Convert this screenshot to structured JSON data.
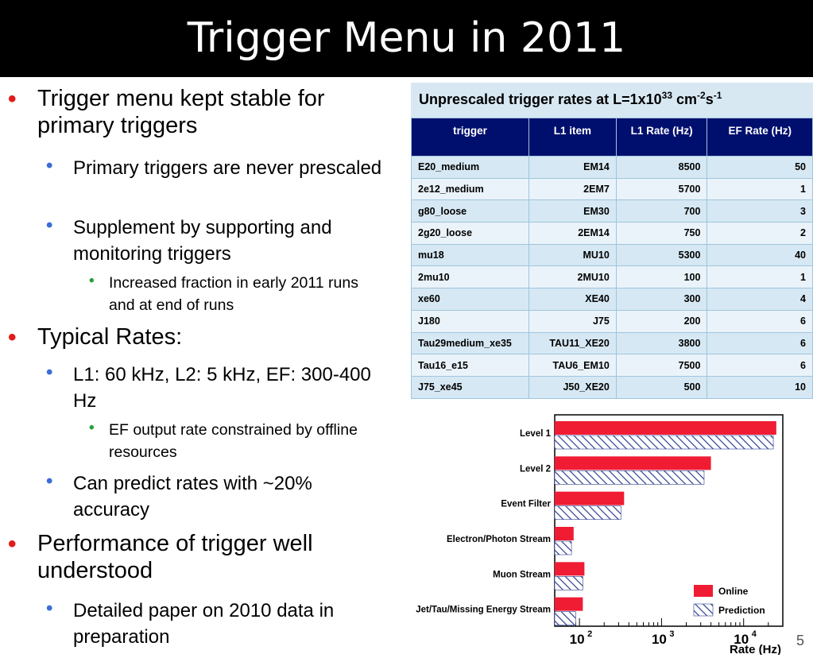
{
  "slide": {
    "title": "Trigger Menu in 2011",
    "page_number": "5",
    "colors": {
      "title_bg": "#000000",
      "l1_bullet": "#e21b1b",
      "l2_bullet": "#3a6ed6",
      "l3_bullet": "#28a03a"
    }
  },
  "bullets": [
    {
      "level": 1,
      "text": "Trigger menu kept stable for primary triggers"
    },
    {
      "level": 2,
      "text": "Primary triggers are never prescaled"
    },
    {
      "level": 2,
      "text": "Supplement by supporting and monitoring triggers"
    },
    {
      "level": 3,
      "text": "Increased fraction in early 2011 runs and at end of runs"
    },
    {
      "level": 1,
      "text": "Typical Rates:"
    },
    {
      "level": 2,
      "text": "L1: 60 kHz, L2: 5 kHz, EF: 300-400 Hz"
    },
    {
      "level": 3,
      "text": "EF output rate constrained by offline resources"
    },
    {
      "level": 2,
      "text": "Can predict rates with ~20% accuracy"
    },
    {
      "level": 1,
      "text": "Performance of trigger well understood"
    },
    {
      "level": 2,
      "text": "Detailed paper on 2010 data in preparation"
    }
  ],
  "rate_table": {
    "caption": {
      "prefix": "Unprescaled trigger rates at L=1x10",
      "lumi_exp": "33",
      "unit_cm": " cm",
      "cm_exp": "-2",
      "unit_s": "s",
      "s_exp": "-1"
    },
    "headers": [
      "trigger",
      "L1 item",
      "L1 Rate (Hz)",
      "EF Rate (Hz)"
    ],
    "rows": [
      [
        "E20_medium",
        "EM14",
        "8500",
        "50"
      ],
      [
        "2e12_medium",
        "2EM7",
        "5700",
        "1"
      ],
      [
        "g80_loose",
        "EM30",
        "700",
        "3"
      ],
      [
        "2g20_loose",
        "2EM14",
        "750",
        "2"
      ],
      [
        "mu18",
        "MU10",
        "5300",
        "40"
      ],
      [
        "2mu10",
        "2MU10",
        "100",
        "1"
      ],
      [
        "xe60",
        "XE40",
        "300",
        "4"
      ],
      [
        "J180",
        "J75",
        "200",
        "6"
      ],
      [
        "Tau29medium_xe35",
        "TAU11_XE20",
        "3800",
        "6"
      ],
      [
        "Tau16_e15",
        "TAU6_EM10",
        "7500",
        "6"
      ],
      [
        "J75_xe45",
        "J50_XE20",
        "500",
        "10"
      ]
    ]
  },
  "chart_data": {
    "type": "bar",
    "orientation": "horizontal",
    "xscale": "log",
    "xlim": [
      50,
      30000
    ],
    "xlabel": "Rate (Hz)",
    "xticks": [
      100,
      1000,
      10000
    ],
    "xtick_labels": [
      [
        "10",
        "2"
      ],
      [
        "10",
        "3"
      ],
      [
        "10",
        "4"
      ]
    ],
    "categories": [
      "Level 1",
      "Level 2",
      "Event Filter",
      "Electron/Photon Stream",
      "Muon Stream",
      "Jet/Tau/Missing Energy Stream"
    ],
    "series": [
      {
        "name": "Online",
        "values": [
          25000,
          4000,
          350,
          85,
          115,
          110
        ],
        "color": "#ef1c34",
        "style": "solid"
      },
      {
        "name": "Prediction",
        "values": [
          23000,
          3300,
          320,
          80,
          110,
          90
        ],
        "color": "#2d3f8f",
        "style": "hatched"
      }
    ],
    "legend_position": "bottom-right"
  }
}
